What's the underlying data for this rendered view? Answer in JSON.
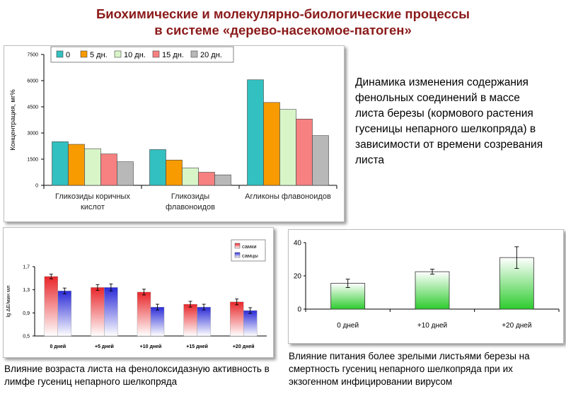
{
  "title_line1": "Биохимические и молекулярно-биологические процессы",
  "title_line2": "в системе «дерево-насекомое-патоген»",
  "description": "Динамика изменения содержания фенольных соединений в массе листа березы (кормового растения гусеницы непарного шелкопряда) в зависимости от времени созревания листа",
  "caption_chart2": "Влияние возраста листа на фенолоксидазную активность в лимфе гусениц непарного шелкопряда",
  "caption_chart3": "Влияние питания более зрелыми листьями березы на смертность гусениц непарного шелкопряда при их экзогенном инфицировании вирусом",
  "colors": {
    "title": "#8B1A1A",
    "s0": "#33C0C0",
    "s5": "#F79B00",
    "s10": "#D8F5C8",
    "s15": "#F78080",
    "s20": "#B8B8B8",
    "females": "#E8262A",
    "males": "#2A2AD8",
    "mortality": "#2ECC2E"
  },
  "chart_data": [
    {
      "type": "bar",
      "ylabel": "Концентрация, мг%",
      "ylim": [
        0,
        7500
      ],
      "yticks": [
        "0",
        "1500",
        "3000",
        "4500",
        "6000",
        "7500"
      ],
      "categories": [
        "Гликозиды коричных кислот",
        "Гликозиды флавоноидов",
        "Агликоны флавоноидов"
      ],
      "category_lines": [
        [
          "Гликозиды коричных",
          "кислот"
        ],
        [
          "Гликозиды",
          "флавоноидов"
        ],
        [
          "Агликоны флавоноидов"
        ]
      ],
      "legend_position": "top",
      "series": [
        {
          "name": "0",
          "values": [
            2500,
            2050,
            6050
          ]
        },
        {
          "name": "5 дн.",
          "values": [
            2350,
            1450,
            4750
          ]
        },
        {
          "name": "10 дн.",
          "values": [
            2100,
            1000,
            4350
          ]
        },
        {
          "name": "15 дн.",
          "values": [
            1800,
            750,
            3800
          ]
        },
        {
          "name": "20 дн.",
          "values": [
            1350,
            600,
            2850
          ]
        }
      ]
    },
    {
      "type": "bar",
      "ylabel": "lg ΔE/мин мл",
      "ylim": [
        0.5,
        1.7
      ],
      "yticks": [
        "0,5",
        "0,9",
        "1,3",
        "1,7"
      ],
      "categories": [
        "0 дней",
        "+5 дней",
        "+10 дней",
        "+15 дней",
        "+20 дней"
      ],
      "legend_position": "top-right",
      "series": [
        {
          "name": "самки",
          "values": [
            1.53,
            1.34,
            1.26,
            1.05,
            1.09
          ],
          "errors": [
            0.04,
            0.05,
            0.05,
            0.05,
            0.05
          ]
        },
        {
          "name": "самцы",
          "values": [
            1.28,
            1.34,
            1.0,
            1.0,
            0.94
          ],
          "errors": [
            0.05,
            0.06,
            0.05,
            0.05,
            0.05
          ]
        }
      ]
    },
    {
      "type": "bar",
      "ylim": [
        0,
        40
      ],
      "yticks": [
        "0",
        "20",
        "40"
      ],
      "categories": [
        "0 дней",
        "+10 дней",
        "+20 дней"
      ],
      "series": [
        {
          "values": [
            15.5,
            22.5,
            31
          ],
          "errors": [
            2.5,
            1.5,
            6.5
          ]
        }
      ]
    }
  ]
}
